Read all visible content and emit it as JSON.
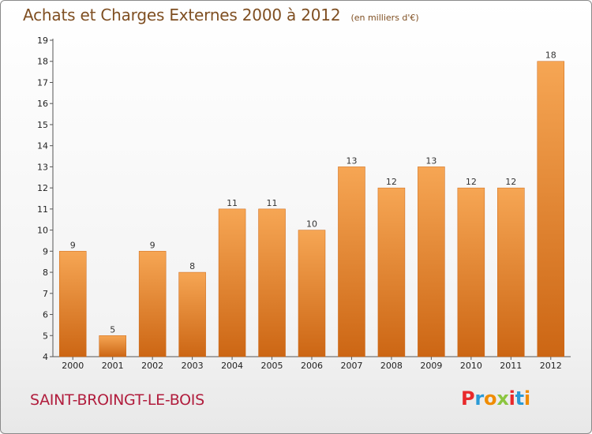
{
  "header": {
    "title": "Achats et Charges Externes 2000 à 2012",
    "subtitle": "(en milliers d'€)"
  },
  "footer": {
    "place": "SAINT-BROINGT-LE-BOIS",
    "brand": "Proxiti",
    "brand_colors": [
      "#e8292b",
      "#2a9ad6",
      "#f08c00",
      "#8bc53f",
      "#e8292b",
      "#2a9ad6",
      "#f08c00"
    ]
  },
  "chart_data": {
    "type": "bar",
    "title": "Achats et Charges Externes 2000 à 2012",
    "subtitle": "(en milliers d'€)",
    "categories": [
      "2000",
      "2001",
      "2002",
      "2003",
      "2004",
      "2005",
      "2006",
      "2007",
      "2008",
      "2009",
      "2010",
      "2011",
      "2012"
    ],
    "values": [
      9,
      5,
      9,
      8,
      11,
      11,
      10,
      13,
      12,
      13,
      12,
      12,
      18
    ],
    "yticks": [
      4,
      5,
      6,
      7,
      8,
      9,
      10,
      11,
      12,
      13,
      14,
      15,
      16,
      17,
      18,
      19
    ],
    "ylim": [
      4,
      19
    ],
    "xlabel": "",
    "ylabel": "",
    "grid": false,
    "bar_color": "#e98a32",
    "bar_color_light": "#f6a654",
    "bar_color_dark": "#cc6614"
  }
}
